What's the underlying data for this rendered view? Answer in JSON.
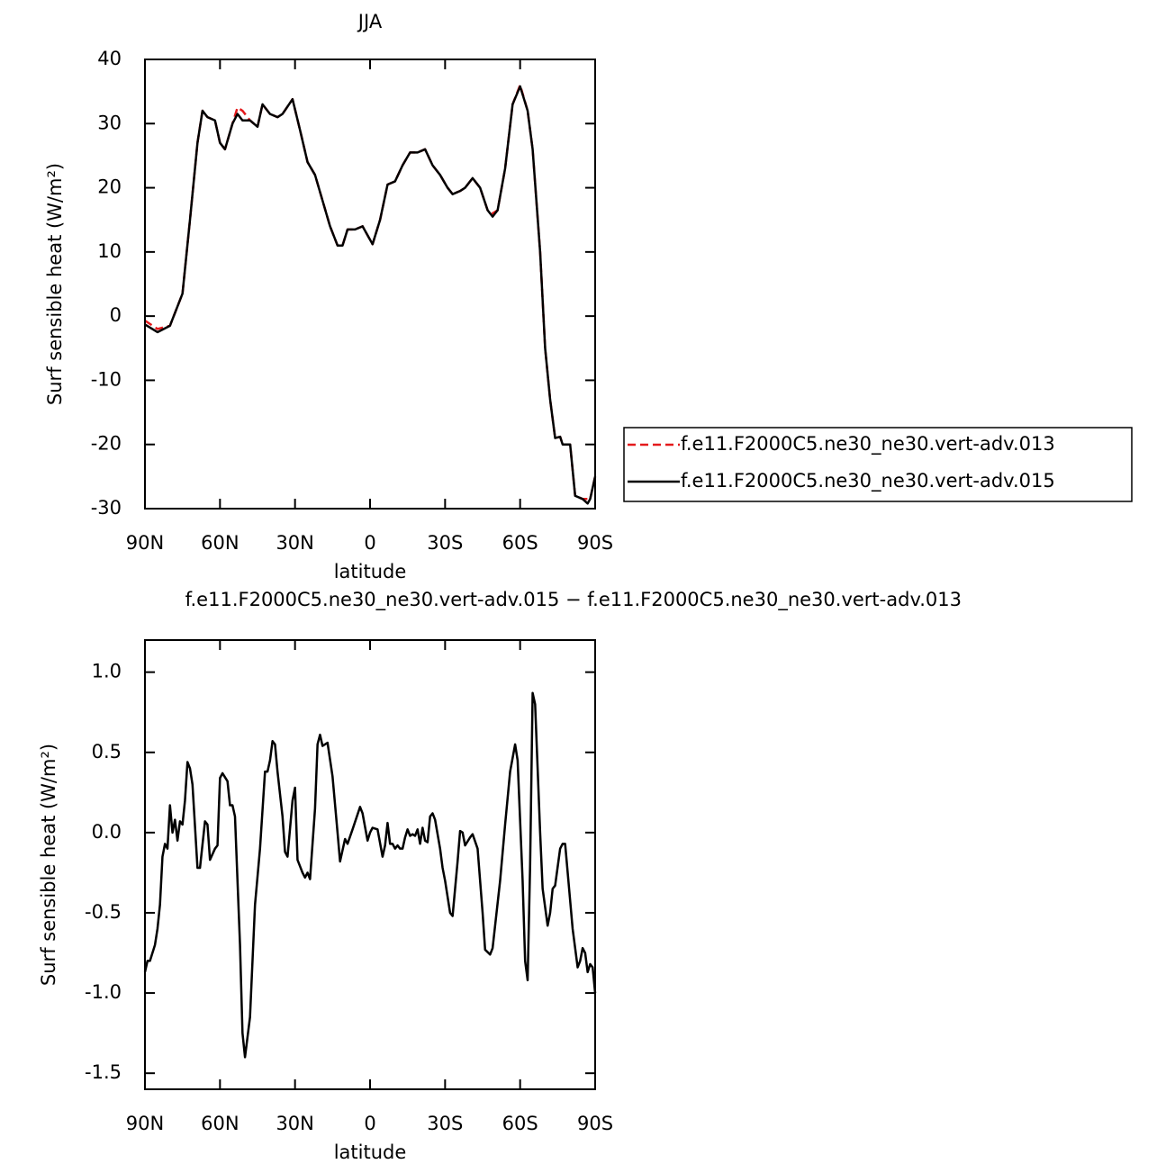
{
  "chart_data": [
    {
      "type": "line",
      "title": "JJA",
      "x_label": "latitude",
      "y_label": "Surf sensible heat (W/m²)",
      "x": [
        90,
        85,
        80,
        75,
        72,
        69,
        67,
        65,
        62,
        60,
        58,
        55,
        53,
        51,
        48,
        45,
        43,
        40,
        37,
        35,
        31,
        28,
        25,
        22,
        19,
        16,
        13,
        11,
        9,
        6,
        3,
        -1,
        -4,
        -7,
        -10,
        -13,
        -16,
        -19,
        -22,
        -25,
        -28,
        -31,
        -33,
        -36,
        -38,
        -41,
        -44,
        -47,
        -49,
        -51,
        -54,
        -57,
        -60,
        -63,
        -65,
        -68,
        -70,
        -72,
        -74,
        -76,
        -77,
        -80,
        -82,
        -85,
        -87,
        -88,
        -90
      ],
      "series": [
        {
          "name": "f.e11.F2000C5.ne30_ne30.vert-adv.013",
          "color": "#e41a1c",
          "line_style": "dashed",
          "values": [
            -0.7,
            -2.0,
            -1.5,
            3.5,
            15,
            27,
            32,
            31,
            30.5,
            27,
            26,
            30,
            32.5,
            32,
            30.5,
            29.5,
            33,
            31.5,
            31,
            31.5,
            33.8,
            29,
            24,
            22,
            18,
            14,
            11,
            11,
            13.5,
            13.5,
            14,
            11.2,
            15,
            20.5,
            21,
            23.5,
            25.5,
            25.5,
            26,
            23.5,
            22,
            20,
            19,
            19.5,
            20,
            21.5,
            20,
            16.5,
            16,
            16.5,
            23,
            33,
            36,
            32,
            26,
            10,
            -5,
            -13,
            -19,
            -18.8,
            -20,
            -20,
            -28,
            -28.5,
            -28.5,
            -28.5,
            -25
          ]
        },
        {
          "name": "f.e11.F2000C5.ne30_ne30.vert-adv.015",
          "color": "#000000",
          "line_style": "solid",
          "values": [
            -1.3,
            -2.5,
            -1.5,
            3.5,
            15,
            27,
            32,
            31,
            30.5,
            27,
            26,
            30,
            31.5,
            30.5,
            30.5,
            29.5,
            33,
            31.5,
            31,
            31.5,
            33.8,
            29,
            24,
            22,
            18,
            14,
            11,
            11,
            13.5,
            13.5,
            14,
            11.2,
            15,
            20.5,
            21,
            23.5,
            25.5,
            25.5,
            26,
            23.5,
            22,
            20,
            19,
            19.5,
            20,
            21.5,
            20,
            16.5,
            15.5,
            16.5,
            23,
            33,
            35.8,
            32,
            26,
            10,
            -5,
            -13,
            -19,
            -18.8,
            -20,
            -20,
            -28,
            -28.5,
            -29.2,
            -28.5,
            -25
          ]
        }
      ],
      "xlim": [
        90,
        -90
      ],
      "xticks": [
        {
          "value": 90,
          "label": "90N"
        },
        {
          "value": 60,
          "label": "60N"
        },
        {
          "value": 30,
          "label": "30N"
        },
        0,
        {
          "value": -30,
          "label": "30S"
        },
        {
          "value": -60,
          "label": "60S"
        },
        {
          "value": -90,
          "label": "90S"
        }
      ],
      "ylim": [
        -30,
        40
      ],
      "yticks": [
        -30,
        -20,
        -10,
        0,
        10,
        20,
        30,
        40
      ],
      "legend": "right"
    },
    {
      "type": "line",
      "title": "f.e11.F2000C5.ne30_ne30.vert-adv.015 − f.e11.F2000C5.ne30_ne30.vert-adv.013",
      "x_label": "latitude",
      "y_label": "Surf sensible heat (W/m²)",
      "x": [
        90,
        89,
        88,
        86,
        85,
        84,
        83,
        82,
        81,
        80,
        79,
        78,
        77,
        76,
        75,
        74,
        73,
        72,
        71,
        69,
        68,
        66,
        65,
        64,
        62,
        61,
        60,
        59,
        57,
        56,
        55,
        54,
        52,
        51,
        50,
        48,
        46,
        44,
        42,
        41,
        40,
        39,
        38,
        37,
        35,
        34,
        33,
        31,
        30,
        29,
        27,
        26,
        25,
        24,
        22,
        21,
        20,
        19,
        17,
        15,
        13,
        12,
        10,
        9,
        7,
        4,
        3,
        1,
        0,
        -1,
        -3,
        -5,
        -6,
        -7,
        -8,
        -9,
        -10,
        -11,
        -12,
        -13,
        -14,
        -15,
        -16,
        -17,
        -18,
        -19,
        -20,
        -21,
        -22,
        -23,
        -24,
        -25,
        -26,
        -28,
        -29,
        -30,
        -32,
        -33,
        -35,
        -36,
        -37,
        -38,
        -40,
        -41,
        -43,
        -45,
        -46,
        -48,
        -49,
        -52,
        -54,
        -56,
        -58,
        -59,
        -61,
        -62,
        -63,
        -64,
        -65,
        -66,
        -68,
        -69,
        -71,
        -72,
        -73,
        -74,
        -76,
        -77,
        -78,
        -81,
        -83,
        -84,
        -85,
        -86,
        -87,
        -88,
        -89,
        -90
      ],
      "series": [
        {
          "color": "#000000",
          "line_style": "solid",
          "values": [
            -0.87,
            -0.8,
            -0.8,
            -0.7,
            -0.6,
            -0.45,
            -0.15,
            -0.07,
            -0.1,
            0.17,
            0,
            0.08,
            -0.05,
            0.07,
            0.05,
            0.2,
            0.44,
            0.4,
            0.3,
            -0.22,
            -0.22,
            0.07,
            0.05,
            -0.17,
            -0.1,
            -0.08,
            0.34,
            0.37,
            0.32,
            0.17,
            0.17,
            0.1,
            -0.7,
            -1.25,
            -1.4,
            -1.15,
            -0.45,
            -0.1,
            0.38,
            0.38,
            0.45,
            0.57,
            0.55,
            0.38,
            0.1,
            -0.12,
            -0.15,
            0.2,
            0.28,
            -0.17,
            -0.25,
            -0.28,
            -0.25,
            -0.29,
            0.15,
            0.55,
            0.61,
            0.54,
            0.56,
            0.35,
            0,
            -0.18,
            -0.04,
            -0.07,
            0.02,
            0.16,
            0.12,
            -0.05,
            0,
            0.03,
            0.02,
            -0.15,
            -0.08,
            0.06,
            -0.07,
            -0.07,
            -0.1,
            -0.08,
            -0.1,
            -0.1,
            -0.03,
            0.02,
            -0.02,
            -0.01,
            -0.02,
            0.02,
            -0.07,
            0.03,
            -0.05,
            -0.06,
            0.1,
            0.12,
            0.08,
            -0.1,
            -0.22,
            -0.3,
            -0.5,
            -0.52,
            -0.18,
            0.01,
            0,
            -0.08,
            -0.03,
            -0.01,
            -0.1,
            -0.5,
            -0.73,
            -0.76,
            -0.72,
            -0.3,
            0.05,
            0.38,
            0.55,
            0.45,
            -0.3,
            -0.8,
            -0.92,
            -0.2,
            0.87,
            0.8,
            0,
            -0.35,
            -0.58,
            -0.5,
            -0.35,
            -0.33,
            -0.1,
            -0.07,
            -0.07,
            -0.6,
            -0.84,
            -0.8,
            -0.72,
            -0.75,
            -0.87,
            -0.82,
            -0.84,
            -1.0
          ]
        }
      ],
      "xlim": [
        90,
        -90
      ],
      "xticks": [
        {
          "value": 90,
          "label": "90N"
        },
        {
          "value": 60,
          "label": "60N"
        },
        {
          "value": 30,
          "label": "30N"
        },
        0,
        {
          "value": -30,
          "label": "30S"
        },
        {
          "value": -60,
          "label": "60S"
        },
        {
          "value": -90,
          "label": "90S"
        }
      ],
      "ylim": [
        -1.6,
        1.2
      ],
      "yticks": [
        -1.5,
        {
          "value": -1.0,
          "label": "-1.0"
        },
        -0.5,
        {
          "value": 0,
          "label": "0.0"
        },
        0.5,
        {
          "value": 1.0,
          "label": "1.0"
        }
      ]
    }
  ]
}
